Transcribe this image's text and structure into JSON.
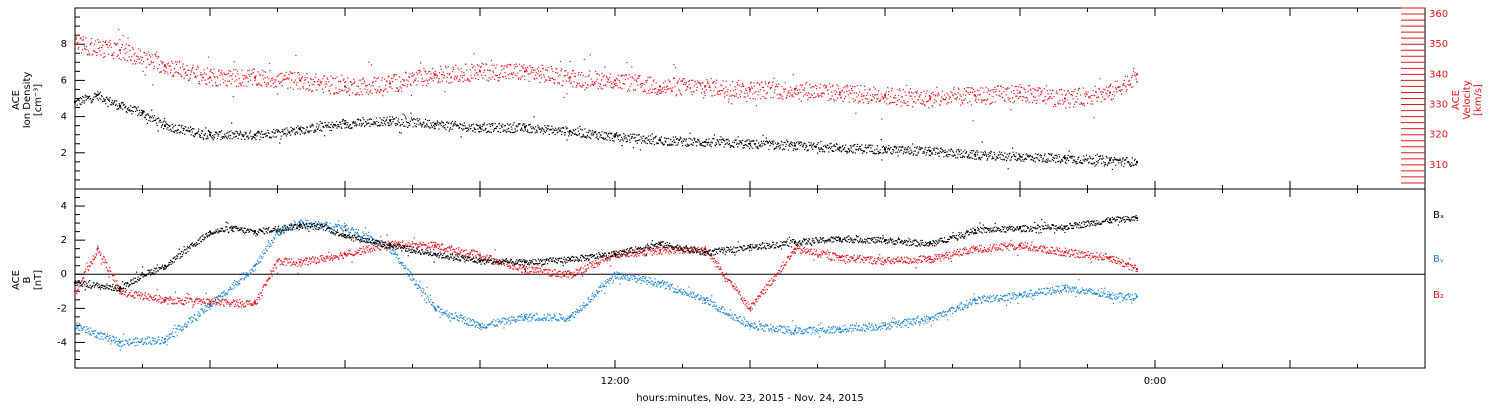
{
  "colors": {
    "black": "#000000",
    "red": "#e8141c",
    "blue": "#1f86d8"
  },
  "xlabel": "hours:minutes, Nov. 23, 2015 - Nov. 24, 2015",
  "x_ticks": [
    "12:00",
    "0:00"
  ],
  "chart_data": [
    {
      "type": "scatter",
      "panel": "top",
      "ylabel_left": [
        "ACE",
        "Ion Density",
        "[cm⁻³]"
      ],
      "ylabel_right": [
        "ACE",
        "Velocity",
        "[km/s]"
      ],
      "y_ticks_left": [
        "2",
        "4",
        "6",
        "8"
      ],
      "y_ticks_right": [
        "310",
        "320",
        "330",
        "340",
        "350",
        "360"
      ],
      "ylim_left": [
        0,
        10
      ],
      "ylim_right": [
        302,
        362
      ],
      "xlim_hours": [
        2,
        32
      ],
      "series": [
        {
          "color": "black",
          "axis": "left",
          "x": [
            2.0,
            2.5,
            3.0,
            3.5,
            4.0,
            5.0,
            6.0,
            7.0,
            8.0,
            9.0,
            10.0,
            11.0,
            12.0,
            13.0,
            14.0,
            15.0,
            16.0,
            17.0,
            18.0,
            19.0,
            20.0,
            21.0,
            22.0,
            23.0,
            24.0,
            25.0,
            25.6
          ],
          "y": [
            4.8,
            5.2,
            4.6,
            4.2,
            3.5,
            3.0,
            3.0,
            3.3,
            3.6,
            3.8,
            3.6,
            3.4,
            3.4,
            3.2,
            2.9,
            2.7,
            2.6,
            2.5,
            2.4,
            2.3,
            2.2,
            2.1,
            1.9,
            1.8,
            1.7,
            1.6,
            1.5
          ]
        },
        {
          "color": "red",
          "axis": "right",
          "x": [
            2.0,
            3.0,
            4.0,
            5.0,
            6.0,
            7.0,
            8.0,
            9.0,
            10.0,
            11.0,
            12.0,
            13.0,
            14.0,
            15.0,
            16.0,
            17.0,
            18.0,
            19.0,
            20.0,
            21.0,
            22.0,
            23.0,
            24.0,
            25.0,
            25.6
          ],
          "y": [
            350,
            348,
            343,
            339,
            339,
            338,
            336,
            337,
            340,
            341,
            341,
            339,
            338,
            336,
            336,
            335,
            335,
            334,
            333,
            332,
            333,
            334,
            332,
            334,
            340
          ]
        }
      ]
    },
    {
      "type": "scatter",
      "panel": "bottom",
      "ylabel_left": [
        "ACE",
        "B",
        "[nT]"
      ],
      "y_ticks_left": [
        "-4",
        "-2",
        "0",
        "2",
        "4"
      ],
      "ylim": [
        -5.5,
        5
      ],
      "xlim_hours": [
        2,
        32
      ],
      "legend": [
        "Bₓ",
        "Bᵧ",
        "B₂"
      ],
      "series": [
        {
          "name": "Bₓ",
          "color": "black",
          "x": [
            2.0,
            3.0,
            3.5,
            4.0,
            5.0,
            5.5,
            6.0,
            7.0,
            7.5,
            8.0,
            9.0,
            10.0,
            11.0,
            12.0,
            13.0,
            14.0,
            15.0,
            16.0,
            17.0,
            18.0,
            19.0,
            20.0,
            21.0,
            22.0,
            23.0,
            24.0,
            25.0,
            25.6
          ],
          "y": [
            -0.5,
            -0.8,
            0.0,
            0.5,
            2.5,
            2.7,
            2.5,
            2.9,
            2.8,
            2.3,
            1.7,
            1.2,
            0.8,
            0.7,
            0.9,
            1.2,
            1.8,
            1.3,
            1.6,
            1.9,
            2.1,
            2.0,
            1.8,
            2.6,
            2.7,
            2.8,
            3.2,
            3.3
          ]
        },
        {
          "name": "Bᵧ",
          "color": "blue",
          "x": [
            2.0,
            3.0,
            4.0,
            5.0,
            6.0,
            6.5,
            7.0,
            8.0,
            9.0,
            10.0,
            11.0,
            12.0,
            13.0,
            14.0,
            15.0,
            16.0,
            17.0,
            18.0,
            19.0,
            20.0,
            21.0,
            22.0,
            23.0,
            24.0,
            25.0,
            25.6
          ],
          "y": [
            -3.0,
            -4.0,
            -3.8,
            -1.8,
            0.5,
            2.5,
            3.0,
            2.8,
            1.5,
            -2.0,
            -3.0,
            -2.5,
            -2.5,
            0.0,
            -0.5,
            -1.5,
            -3.0,
            -3.3,
            -3.2,
            -3.0,
            -2.6,
            -1.5,
            -1.2,
            -0.8,
            -1.2,
            -1.3
          ]
        },
        {
          "name": "B₂",
          "color": "red",
          "x": [
            2.0,
            2.5,
            3.0,
            4.0,
            5.0,
            6.0,
            6.5,
            7.0,
            8.0,
            9.0,
            10.0,
            11.0,
            12.0,
            13.0,
            14.0,
            15.0,
            16.0,
            17.0,
            18.0,
            19.0,
            20.0,
            21.0,
            22.0,
            23.0,
            24.0,
            25.0,
            25.6
          ],
          "y": [
            -1.0,
            1.5,
            -1.0,
            -1.5,
            -1.6,
            -1.7,
            0.8,
            0.7,
            1.2,
            1.8,
            1.7,
            1.1,
            0.3,
            0.0,
            1.2,
            1.4,
            1.5,
            -2.0,
            1.5,
            1.0,
            0.8,
            0.9,
            1.5,
            1.7,
            1.3,
            1.0,
            0.3
          ]
        }
      ]
    }
  ]
}
